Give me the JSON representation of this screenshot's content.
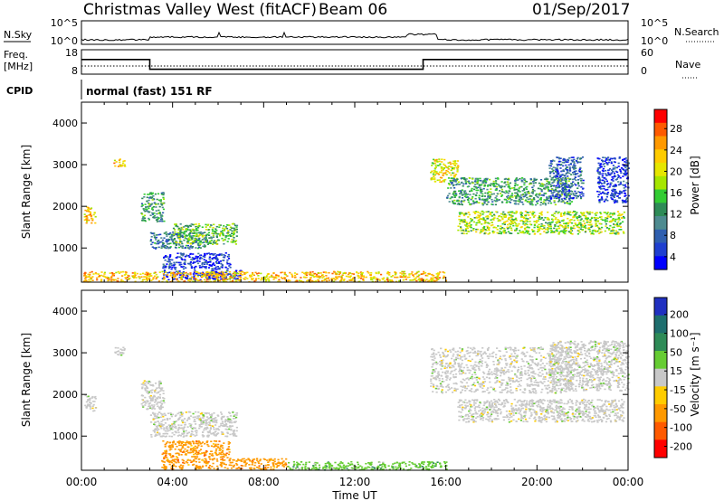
{
  "header": {
    "title": "Christmas Valley West (fitACF)",
    "beam": "Beam 06",
    "date": "01/Sep/2017"
  },
  "nsky_panel": {
    "left_label": "N.Sky",
    "left_ticks": [
      "10^5",
      "10^0"
    ],
    "right_ticks": [
      "10^5",
      "10^0"
    ],
    "right_label": "N.Search"
  },
  "freq_panel": {
    "left_label_1": "Freq.",
    "left_label_2": "[MHz]",
    "left_ticks": [
      "18",
      "8"
    ],
    "right_ticks": [
      "60",
      "0"
    ],
    "right_label": "Nave",
    "cpid_label": "CPID",
    "cpid_text": "normal (fast) 151 RF",
    "freq_steps": [
      {
        "start_hour": 0,
        "end_hour": 3,
        "freq": 14
      },
      {
        "start_hour": 3,
        "end_hour": 15,
        "freq": 10
      },
      {
        "start_hour": 15,
        "end_hour": 24,
        "freq": 14
      }
    ],
    "nave": 20
  },
  "chart_data": [
    {
      "type": "heatmap",
      "name": "power",
      "ylabel": "Slant Range [km]",
      "y_ticks": [
        "1000",
        "2000",
        "3000",
        "4000"
      ],
      "ylim": [
        180,
        4500
      ],
      "xlim": [
        0,
        24
      ],
      "colorbar": {
        "label": "Power [dB]",
        "ticks": [
          "28",
          "24",
          "20",
          "16",
          "12",
          "8",
          "4"
        ],
        "colors": [
          "#ff0000",
          "#ff5a00",
          "#ff9900",
          "#ffcc00",
          "#e6e600",
          "#a6e600",
          "#33cc33",
          "#2e8b57",
          "#4e8b90",
          "#2f5faf",
          "#1f3fd0",
          "#0000ff"
        ]
      },
      "regions": [
        {
          "x": [
            0.1,
            0.6
          ],
          "y": [
            1600,
            2000
          ],
          "level": 3
        },
        {
          "x": [
            1.4,
            1.9
          ],
          "y": [
            2950,
            3150
          ],
          "level": 3
        },
        {
          "x": [
            2.6,
            3.6
          ],
          "y": [
            1650,
            2350
          ],
          "level": 7
        },
        {
          "x": [
            3.0,
            5.5
          ],
          "y": [
            1000,
            1400
          ],
          "level": 8
        },
        {
          "x": [
            4.0,
            6.8
          ],
          "y": [
            1100,
            1600
          ],
          "level": 6
        },
        {
          "x": [
            3.5,
            6.5
          ],
          "y": [
            500,
            900
          ],
          "level": 10
        },
        {
          "x": [
            3.5,
            7.0
          ],
          "y": [
            250,
            480
          ],
          "level": 11
        },
        {
          "x": [
            0.0,
            16.0
          ],
          "y": [
            200,
            450
          ],
          "level": 3
        },
        {
          "x": [
            15.3,
            16.5
          ],
          "y": [
            2600,
            3150
          ],
          "level": 4
        },
        {
          "x": [
            16.0,
            21.5
          ],
          "y": [
            2050,
            2700
          ],
          "level": 7
        },
        {
          "x": [
            16.5,
            23.8
          ],
          "y": [
            1350,
            1900
          ],
          "level": 5
        },
        {
          "x": [
            20.5,
            22.0
          ],
          "y": [
            2200,
            3200
          ],
          "level": 9
        },
        {
          "x": [
            22.6,
            24.0
          ],
          "y": [
            2100,
            3200
          ],
          "level": 10
        }
      ]
    },
    {
      "type": "heatmap",
      "name": "velocity",
      "ylabel": "Slant Range [km]",
      "y_ticks": [
        "1000",
        "2000",
        "3000",
        "4000"
      ],
      "ylim": [
        180,
        4500
      ],
      "xlim": [
        0,
        24
      ],
      "x_ticks": [
        "00:00",
        "04:00",
        "08:00",
        "12:00",
        "16:00",
        "20:00",
        "00:00"
      ],
      "xlabel": "Time UT",
      "colorbar": {
        "label": "Velocity [m s⁻¹]",
        "ticks": [
          "200",
          "100",
          "50",
          "15",
          "-15",
          "-50",
          "-100",
          "-200"
        ],
        "colors": [
          "#2030c0",
          "#1e6e6e",
          "#2e8b57",
          "#66cc33",
          "#c8c8c8",
          "#ffcc00",
          "#ff9900",
          "#ff5a00",
          "#ff0000"
        ]
      },
      "regions": [
        {
          "x": [
            0.1,
            0.6
          ],
          "y": [
            1600,
            2000
          ],
          "level": 4
        },
        {
          "x": [
            1.4,
            1.9
          ],
          "y": [
            2950,
            3150
          ],
          "level": 4
        },
        {
          "x": [
            2.6,
            3.6
          ],
          "y": [
            1650,
            2350
          ],
          "level": 4
        },
        {
          "x": [
            3.0,
            6.8
          ],
          "y": [
            1000,
            1600
          ],
          "level": 4
        },
        {
          "x": [
            3.5,
            6.5
          ],
          "y": [
            500,
            900
          ],
          "level": 6
        },
        {
          "x": [
            3.5,
            9.0
          ],
          "y": [
            220,
            480
          ],
          "level": 6
        },
        {
          "x": [
            9.0,
            16.0
          ],
          "y": [
            200,
            400
          ],
          "level": 3
        },
        {
          "x": [
            15.3,
            21.5
          ],
          "y": [
            2050,
            3150
          ],
          "level": 4
        },
        {
          "x": [
            16.5,
            23.8
          ],
          "y": [
            1350,
            1900
          ],
          "level": 4
        },
        {
          "x": [
            20.5,
            24.0
          ],
          "y": [
            2100,
            3300
          ],
          "level": 4
        }
      ]
    }
  ]
}
